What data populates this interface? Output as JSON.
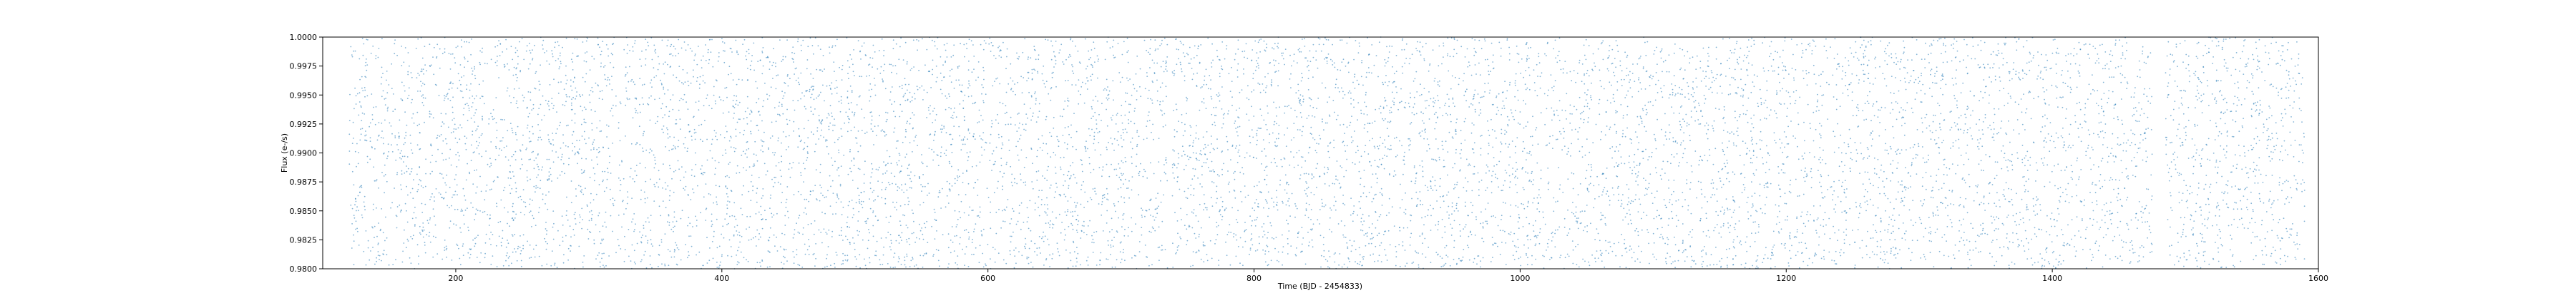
{
  "chart_data": {
    "type": "scatter",
    "title": "",
    "xlabel": "Time (BJD - 2454833)",
    "ylabel": "Flux (e-/s)",
    "xlim": [
      100,
      1600
    ],
    "ylim": [
      0.98,
      1.0
    ],
    "xticks": [
      200,
      400,
      600,
      800,
      1000,
      1200,
      1400,
      1600
    ],
    "yticks": [
      0.98,
      0.9825,
      0.985,
      0.9875,
      0.99,
      0.9925,
      0.995,
      0.9975,
      1.0
    ],
    "xtick_labels": [
      "200",
      "400",
      "600",
      "800",
      "1000",
      "1200",
      "1400",
      "1600"
    ],
    "ytick_labels": [
      "0.9800",
      "0.9825",
      "0.9850",
      "0.9875",
      "0.9900",
      "0.9925",
      "0.9950",
      "0.9975",
      "1.0000"
    ],
    "grid": false,
    "marker_color": "#1f77b4",
    "series": [
      {
        "segments": [
          {
            "x_range": [
              120,
              735
            ],
            "n_points": 4200
          },
          {
            "x_range": [
              738,
              1475
            ],
            "n_points": 5000
          },
          {
            "x_range": [
              1485,
              1590
            ],
            "n_points": 720
          }
        ],
        "y_range": [
          0.98,
          1.0
        ],
        "distribution": "uniform noise"
      }
    ]
  }
}
